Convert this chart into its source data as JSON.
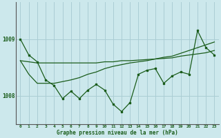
{
  "title": "Graphe pression niveau de la mer (hPa)",
  "background_color": "#cce8ec",
  "grid_color": "#aacdd4",
  "line_color": "#1a5c1a",
  "marker_color": "#1a5c1a",
  "x_labels": [
    "0",
    "1",
    "2",
    "3",
    "4",
    "5",
    "6",
    "7",
    "8",
    "9",
    "10",
    "11",
    "12",
    "13",
    "14",
    "15",
    "16",
    "17",
    "18",
    "19",
    "20",
    "21",
    "22",
    "23"
  ],
  "ytick_labels": [
    "1008",
    "1009"
  ],
  "ylim": [
    1007.5,
    1009.65
  ],
  "xlim": [
    -0.5,
    23.5
  ],
  "series_jagged": [
    1009.0,
    1008.72,
    1008.6,
    1008.28,
    1008.18,
    1007.95,
    1008.08,
    1007.95,
    1008.1,
    1008.2,
    1008.1,
    1007.85,
    1007.72,
    1007.88,
    1008.38,
    1008.45,
    1008.48,
    1008.22,
    1008.35,
    1008.42,
    1008.38,
    1009.15,
    1008.85,
    1008.72
  ],
  "series_flat": [
    1008.62,
    1008.6,
    1008.58,
    1008.58,
    1008.58,
    1008.58,
    1008.58,
    1008.58,
    1008.58,
    1008.58,
    1008.6,
    1008.6,
    1008.62,
    1008.62,
    1008.63,
    1008.64,
    1008.65,
    1008.66,
    1008.67,
    1008.7,
    1008.72,
    1008.74,
    1008.76,
    1008.8
  ],
  "series_diagonal": [
    1008.62,
    1008.38,
    1008.22,
    1008.22,
    1008.22,
    1008.25,
    1008.28,
    1008.32,
    1008.38,
    1008.42,
    1008.48,
    1008.52,
    1008.55,
    1008.58,
    1008.6,
    1008.62,
    1008.65,
    1008.68,
    1008.7,
    1008.75,
    1008.8,
    1008.85,
    1008.9,
    1008.95
  ]
}
